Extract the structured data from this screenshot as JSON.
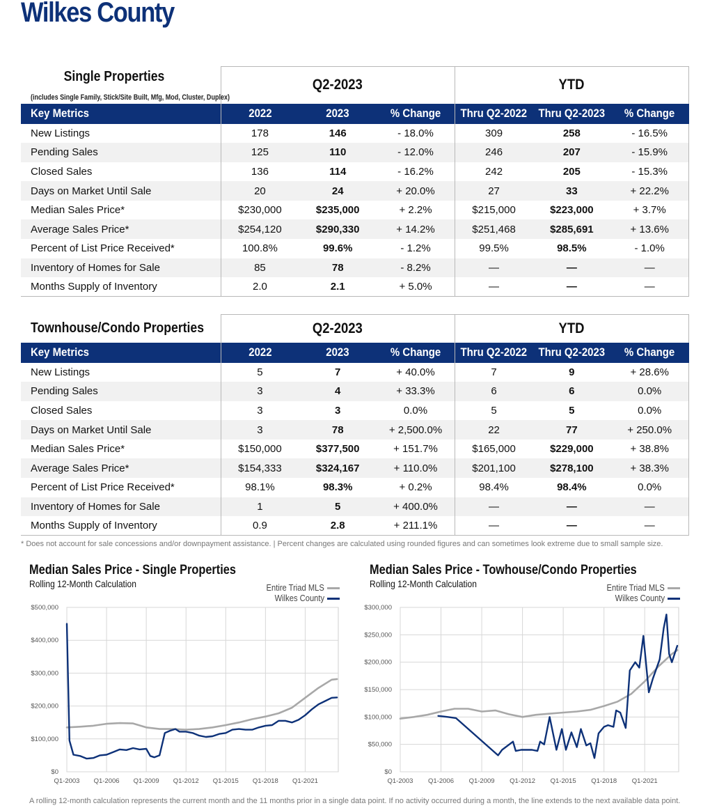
{
  "page_title": "Wilkes County",
  "single": {
    "title": "Single Properties",
    "subtitle": "(includes Single Family, Stick/Site Built, Mfg, Mod, Cluster, Duplex)",
    "period_q": "Q2-2023",
    "period_ytd": "YTD",
    "headers": [
      "Key Metrics",
      "2022",
      "2023",
      "% Change",
      "Thru Q2-2022",
      "Thru Q2-2023",
      "% Change"
    ],
    "rows": [
      [
        "New Listings",
        "178",
        "146",
        "- 18.0%",
        "309",
        "258",
        "- 16.5%"
      ],
      [
        "Pending Sales",
        "125",
        "110",
        "- 12.0%",
        "246",
        "207",
        "- 15.9%"
      ],
      [
        "Closed Sales",
        "136",
        "114",
        "- 16.2%",
        "242",
        "205",
        "- 15.3%"
      ],
      [
        "Days on Market Until Sale",
        "20",
        "24",
        "+ 20.0%",
        "27",
        "33",
        "+ 22.2%"
      ],
      [
        "Median Sales Price*",
        "$230,000",
        "$235,000",
        "+ 2.2%",
        "$215,000",
        "$223,000",
        "+ 3.7%"
      ],
      [
        "Average Sales Price*",
        "$254,120",
        "$290,330",
        "+ 14.2%",
        "$251,468",
        "$285,691",
        "+ 13.6%"
      ],
      [
        "Percent of List Price Received*",
        "100.8%",
        "99.6%",
        "- 1.2%",
        "99.5%",
        "98.5%",
        "- 1.0%"
      ],
      [
        "Inventory of Homes for Sale",
        "85",
        "78",
        "- 8.2%",
        "—",
        "—",
        "—"
      ],
      [
        "Months Supply of Inventory",
        "2.0",
        "2.1",
        "+ 5.0%",
        "—",
        "—",
        "—"
      ]
    ]
  },
  "townhouse": {
    "title": "Townhouse/Condo Properties",
    "period_q": "Q2-2023",
    "period_ytd": "YTD",
    "headers": [
      "Key Metrics",
      "2022",
      "2023",
      "% Change",
      "Thru Q2-2022",
      "Thru Q2-2023",
      "% Change"
    ],
    "rows": [
      [
        "New Listings",
        "5",
        "7",
        "+ 40.0%",
        "7",
        "9",
        "+ 28.6%"
      ],
      [
        "Pending Sales",
        "3",
        "4",
        "+ 33.3%",
        "6",
        "6",
        "0.0%"
      ],
      [
        "Closed Sales",
        "3",
        "3",
        "0.0%",
        "5",
        "5",
        "0.0%"
      ],
      [
        "Days on Market Until Sale",
        "3",
        "78",
        "+ 2,500.0%",
        "22",
        "77",
        "+ 250.0%"
      ],
      [
        "Median Sales Price*",
        "$150,000",
        "$377,500",
        "+ 151.7%",
        "$165,000",
        "$229,000",
        "+ 38.8%"
      ],
      [
        "Average Sales Price*",
        "$154,333",
        "$324,167",
        "+ 110.0%",
        "$201,100",
        "$278,100",
        "+ 38.3%"
      ],
      [
        "Percent of List Price Received*",
        "98.1%",
        "98.3%",
        "+ 0.2%",
        "98.4%",
        "98.4%",
        "0.0%"
      ],
      [
        "Inventory of Homes for Sale",
        "1",
        "5",
        "+ 400.0%",
        "—",
        "—",
        "—"
      ],
      [
        "Months Supply of Inventory",
        "0.9",
        "2.8",
        "+ 211.1%",
        "—",
        "—",
        "—"
      ]
    ]
  },
  "footnote": "* Does not account for sale concessions and/or downpayment assistance. | Percent changes are calculated using rounded figures and can sometimes look extreme due to small sample size.",
  "bottom_note": "A rolling 12-month calculation represents the current month and the 11 months prior in a single data point. If no activity occurred during a month, the line extends to the next available data point.",
  "colors": {
    "brand_navy": "#0d3178",
    "triad_gray": "#a8a8a8",
    "county_navy": "#0d3178"
  },
  "chart_data": [
    {
      "type": "line",
      "title": "Median Sales Price - Single Properties",
      "subtitle": "Rolling 12-Month Calculation",
      "x_tick_labels": [
        "Q1-2003",
        "Q1-2006",
        "Q1-2009",
        "Q1-2012",
        "Q1-2015",
        "Q1-2018",
        "Q1-2021"
      ],
      "y_tick_labels": [
        "$0",
        "$100,000",
        "$200,000",
        "$300,000",
        "$400,000",
        "$500,000"
      ],
      "xlim": [
        2003,
        2023.5
      ],
      "ylim": [
        0,
        500000
      ],
      "grid": true,
      "legend": "top-right",
      "series": [
        {
          "name": "Entire Triad MLS",
          "color": "#a8a8a8",
          "x": [
            2003,
            2004,
            2005,
            2006,
            2007,
            2008,
            2009,
            2010,
            2011,
            2012,
            2013,
            2014,
            2015,
            2016,
            2017,
            2018,
            2019,
            2020,
            2021,
            2022,
            2023,
            2023.4
          ],
          "y": [
            135000,
            137000,
            140000,
            146000,
            148000,
            147000,
            135000,
            130000,
            130000,
            128000,
            130000,
            135000,
            142000,
            150000,
            160000,
            168000,
            178000,
            195000,
            225000,
            255000,
            280000,
            282000
          ]
        },
        {
          "name": "Wilkes County",
          "color": "#0d3178",
          "x": [
            2003,
            2003.2,
            2003.5,
            2004,
            2004.5,
            2005,
            2005.5,
            2006,
            2006.5,
            2007,
            2007.5,
            2008,
            2008.5,
            2009,
            2009.3,
            2009.6,
            2010,
            2010.4,
            2010.8,
            2011.2,
            2011.5,
            2012,
            2012.5,
            2013,
            2013.5,
            2014,
            2014.5,
            2015,
            2015.5,
            2016,
            2016.5,
            2017,
            2017.5,
            2018,
            2018.5,
            2019,
            2019.5,
            2020,
            2020.5,
            2021,
            2021.5,
            2022,
            2022.5,
            2023,
            2023.4
          ],
          "y": [
            450000,
            95000,
            52000,
            48000,
            40000,
            42000,
            50000,
            52000,
            60000,
            68000,
            66000,
            72000,
            68000,
            70000,
            48000,
            44000,
            50000,
            118000,
            125000,
            130000,
            122000,
            122000,
            118000,
            110000,
            106000,
            108000,
            115000,
            118000,
            128000,
            130000,
            128000,
            128000,
            135000,
            140000,
            142000,
            155000,
            155000,
            150000,
            158000,
            172000,
            190000,
            205000,
            215000,
            225000,
            226000
          ]
        }
      ]
    },
    {
      "type": "line",
      "title": "Median Sales Price - Towhouse/Condo Properties",
      "subtitle": "Rolling 12-Month Calculation",
      "x_tick_labels": [
        "Q1-2003",
        "Q1-2006",
        "Q1-2009",
        "Q1-2012",
        "Q1-2015",
        "Q1-2018",
        "Q1-2021"
      ],
      "y_tick_labels": [
        "$0",
        "$50,000",
        "$100,000",
        "$150,000",
        "$200,000",
        "$250,000",
        "$300,000"
      ],
      "xlim": [
        2003,
        2023.5
      ],
      "ylim": [
        0,
        300000
      ],
      "grid": true,
      "legend": "top-right",
      "series": [
        {
          "name": "Entire Triad MLS",
          "color": "#a8a8a8",
          "x": [
            2003,
            2004,
            2005,
            2006,
            2007,
            2008,
            2009,
            2010,
            2011,
            2012,
            2013,
            2014,
            2015,
            2016,
            2017,
            2018,
            2019,
            2020,
            2021,
            2022,
            2023,
            2023.4
          ],
          "y": [
            97000,
            100000,
            104000,
            110000,
            115000,
            115000,
            110000,
            112000,
            105000,
            100000,
            104000,
            106000,
            108000,
            110000,
            113000,
            120000,
            128000,
            142000,
            165000,
            192000,
            215000,
            222000
          ]
        },
        {
          "name": "Wilkes County",
          "color": "#0d3178",
          "x": [
            2005.8,
            2006.5,
            2007.1,
            2010.2,
            2010.5,
            2011.3,
            2011.5,
            2011.9,
            2012.7,
            2013.1,
            2013.3,
            2013.6,
            2014,
            2014.5,
            2014.9,
            2015.2,
            2015.6,
            2016,
            2016.3,
            2016.7,
            2017,
            2017.3,
            2017.6,
            2018,
            2018.3,
            2018.7,
            2018.9,
            2019.2,
            2019.6,
            2019.9,
            2020.3,
            2020.6,
            2020.9,
            2021.3,
            2021.6,
            2022.1,
            2022.4,
            2022.6,
            2022.8,
            2023,
            2023.4
          ],
          "y": [
            102000,
            100000,
            98000,
            30000,
            40000,
            55000,
            38000,
            40000,
            40000,
            38000,
            55000,
            50000,
            100000,
            40000,
            78000,
            40000,
            72000,
            45000,
            78000,
            48000,
            52000,
            25000,
            70000,
            82000,
            85000,
            82000,
            112000,
            108000,
            80000,
            185000,
            200000,
            190000,
            248000,
            145000,
            170000,
            205000,
            262000,
            287000,
            215000,
            200000,
            230000
          ]
        }
      ]
    }
  ]
}
